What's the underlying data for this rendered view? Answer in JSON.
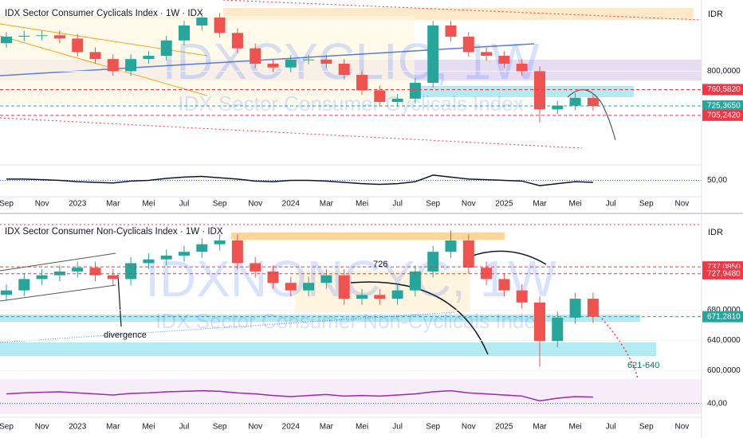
{
  "chart_data": [
    {
      "type": "candlestick",
      "title": "IDX Sector Consumer Cyclicals Index · 1W · IDX",
      "watermark": "IDXCYCLIC, 1W",
      "watermark_subtitle": "IDX Sector Consumer Cyclicals Index",
      "currency": "IDR",
      "xlabels": [
        "Sep",
        "Nov",
        "2023",
        "Mar",
        "Mei",
        "Jul",
        "Sep",
        "Nov",
        "2024",
        "Mar",
        "Mei",
        "Jul",
        "Sep",
        "Nov",
        "2025",
        "Mar",
        "Mei",
        "Jul",
        "Sep",
        "Nov"
      ],
      "open": [
        860,
        874,
        876,
        877,
        870,
        841,
        826,
        800,
        826,
        833,
        866,
        898,
        915,
        882,
        849,
        816,
        808,
        825,
        825,
        816,
        792,
        759,
        734,
        741,
        775,
        898,
        874,
        841,
        833,
        816,
        800,
        718,
        726,
        743
      ],
      "high": [
        884,
        886,
        887,
        887,
        880,
        851,
        836,
        836,
        843,
        876,
        908,
        925,
        925,
        892,
        859,
        826,
        835,
        835,
        835,
        826,
        802,
        769,
        751,
        785,
        908,
        908,
        884,
        851,
        843,
        826,
        810,
        736,
        753,
        753
      ],
      "low": [
        850,
        864,
        866,
        860,
        831,
        816,
        790,
        790,
        816,
        823,
        856,
        888,
        872,
        839,
        806,
        798,
        798,
        815,
        806,
        782,
        749,
        724,
        724,
        731,
        765,
        864,
        831,
        823,
        806,
        790,
        690,
        708,
        716,
        715
      ],
      "close": [
        874,
        876,
        877,
        870,
        841,
        826,
        800,
        826,
        833,
        866,
        898,
        915,
        882,
        849,
        816,
        808,
        825,
        825,
        816,
        792,
        759,
        734,
        741,
        775,
        898,
        874,
        841,
        833,
        816,
        800,
        718,
        726,
        743,
        725.365
      ],
      "up_color": "#26a69a",
      "down_color": "#ef5350",
      "ylim": [
        611,
        939
      ],
      "yticks": [
        {
          "value": 800,
          "label": "800,0000"
        }
      ],
      "price_lines": [
        {
          "value": 760.582,
          "label": "760,5820",
          "color": "#f23645"
        },
        {
          "value": 725.365,
          "label": "725,3650",
          "color": "#26a69a"
        },
        {
          "value": 705.242,
          "label": "705,2420",
          "color": "#f23645"
        }
      ],
      "indicator": {
        "color": "#131722",
        "ylim": [
          30,
          70
        ],
        "yticks": [
          {
            "value": 50,
            "label": "50,00"
          }
        ],
        "values": [
          52,
          52,
          51,
          50,
          48,
          47,
          46,
          49,
          50,
          53,
          55,
          56,
          54,
          52,
          49,
          48,
          50,
          50,
          49,
          47,
          45,
          44,
          45,
          48,
          58,
          55,
          52,
          51,
          50,
          49,
          42,
          45,
          48,
          47
        ]
      }
    },
    {
      "type": "candlestick",
      "title": "IDX Sector Consumer Non-Cyclicals Index · 1W · IDX",
      "watermark": "IDXNONCYC, 1W",
      "watermark_subtitle": "IDX Sector Consumer Non-Cyclicals Index",
      "currency": "IDR",
      "annotations": [
        "726",
        "divergence",
        "621-640"
      ],
      "xlabels": [
        "Sep",
        "Nov",
        "2023",
        "Mar",
        "Mei",
        "Jul",
        "Sep",
        "Nov",
        "2024",
        "Mar",
        "Mei",
        "Jul",
        "Sep",
        "Nov",
        "2025",
        "Mar",
        "Mei",
        "Jul",
        "Sep",
        "Nov"
      ],
      "open": [
        700,
        706,
        721,
        726,
        731,
        736,
        726,
        721,
        742,
        747,
        752,
        757,
        767,
        772,
        742,
        731,
        716,
        706,
        716,
        726,
        695,
        700,
        695,
        706,
        731,
        757,
        772,
        736,
        721,
        706,
        690,
        639,
        670,
        695
      ],
      "high": [
        714,
        729,
        734,
        739,
        744,
        744,
        734,
        750,
        755,
        760,
        765,
        775,
        780,
        780,
        750,
        739,
        724,
        724,
        734,
        734,
        708,
        708,
        714,
        739,
        765,
        785,
        780,
        744,
        729,
        714,
        698,
        678,
        703,
        703
      ],
      "low": [
        692,
        698,
        713,
        718,
        723,
        718,
        713,
        713,
        734,
        739,
        744,
        749,
        759,
        734,
        723,
        708,
        698,
        698,
        708,
        687,
        687,
        687,
        687,
        698,
        723,
        749,
        728,
        713,
        698,
        682,
        605,
        631,
        662,
        663
      ],
      "close": [
        706,
        721,
        726,
        731,
        736,
        726,
        721,
        742,
        747,
        752,
        757,
        767,
        772,
        742,
        731,
        716,
        706,
        716,
        726,
        695,
        700,
        695,
        706,
        731,
        757,
        772,
        736,
        721,
        706,
        690,
        639,
        670,
        695,
        671.281
      ],
      "up_color": "#26a69a",
      "down_color": "#ef5350",
      "ylim": [
        593,
        793
      ],
      "yticks": [
        {
          "value": 600,
          "label": "600,0000"
        },
        {
          "value": 640,
          "label": "640,0000"
        },
        {
          "value": 680,
          "label": "680,0000"
        }
      ],
      "price_lines": [
        {
          "value": 737.085,
          "label": "737,0850",
          "color": "#f23645"
        },
        {
          "value": 727.948,
          "label": "727,9480",
          "color": "#f23645"
        },
        {
          "value": 671.281,
          "label": "671,2810",
          "color": "#26a69a"
        }
      ],
      "indicator": {
        "color": "#9c27b0",
        "ylim": [
          20,
          80
        ],
        "yticks": [
          {
            "value": 40,
            "label": "40,00"
          }
        ],
        "values": [
          58,
          60,
          61,
          62,
          60,
          58,
          56,
          59,
          60,
          62,
          63,
          64,
          63,
          60,
          58,
          55,
          53,
          55,
          57,
          54,
          55,
          54,
          56,
          58,
          62,
          64,
          60,
          58,
          56,
          54,
          45,
          50,
          53,
          52
        ]
      }
    }
  ]
}
